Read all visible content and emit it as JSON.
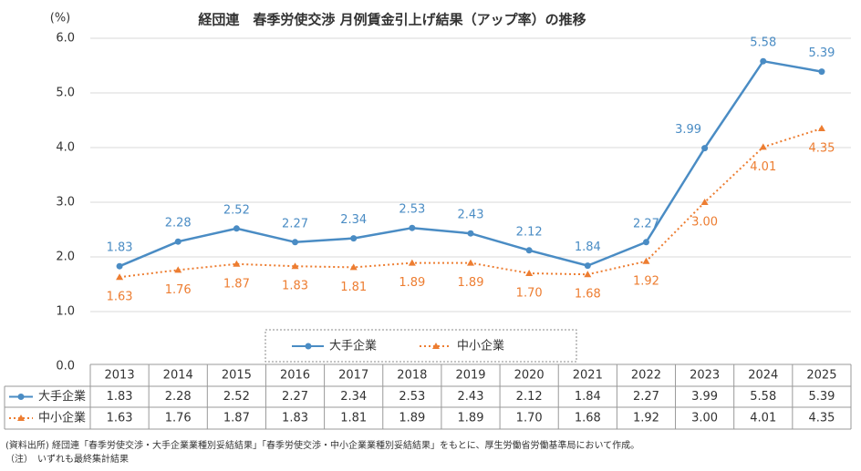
{
  "chart_data": {
    "type": "line",
    "title": "経団連　春季労使交渉 月例賃金引上げ結果（アップ率）の推移",
    "y_unit": "(%)",
    "categories": [
      "2013",
      "2014",
      "2015",
      "2016",
      "2017",
      "2018",
      "2019",
      "2020",
      "2021",
      "2022",
      "2023",
      "2024",
      "2025"
    ],
    "series": [
      {
        "name": "大手企業",
        "color": "#4a8cc4",
        "marker": "circle",
        "dash": "solid",
        "values": [
          1.83,
          2.28,
          2.52,
          2.27,
          2.34,
          2.53,
          2.43,
          2.12,
          1.84,
          2.27,
          3.99,
          5.58,
          5.39
        ],
        "value_labels": [
          "1.83",
          "2.28",
          "2.52",
          "2.27",
          "2.34",
          "2.53",
          "2.43",
          "2.12",
          "1.84",
          "2.27",
          "3.99",
          "5.58",
          "5.39"
        ]
      },
      {
        "name": "中小企業",
        "color": "#ed7d31",
        "marker": "triangle",
        "dash": "dotted",
        "values": [
          1.63,
          1.76,
          1.87,
          1.83,
          1.81,
          1.89,
          1.89,
          1.7,
          1.68,
          1.92,
          3.0,
          4.01,
          4.35
        ],
        "value_labels": [
          "1.63",
          "1.76",
          "1.87",
          "1.83",
          "1.81",
          "1.89",
          "1.89",
          "1.70",
          "1.68",
          "1.92",
          "3.00",
          "4.01",
          "4.35"
        ]
      }
    ],
    "ylim": [
      0,
      6
    ],
    "yticks": [
      {
        "value": 0,
        "label": "0.0"
      },
      {
        "value": 1,
        "label": "1.0"
      },
      {
        "value": 2,
        "label": "2.0"
      },
      {
        "value": 3,
        "label": "3.0"
      },
      {
        "value": 4,
        "label": "4.0"
      },
      {
        "value": 5,
        "label": "5.0"
      },
      {
        "value": 6,
        "label": "6.0"
      }
    ],
    "grid": true,
    "legend": "bottom",
    "notes": [
      "(資料出所) 経団連「春季労使交渉・大手企業業種別妥結結果」「春季労使交渉・中小企業業種別妥結結果」をもとに、厚生労働省労働基準局において作成。",
      "（注）　いずれも最終集計結果"
    ]
  }
}
